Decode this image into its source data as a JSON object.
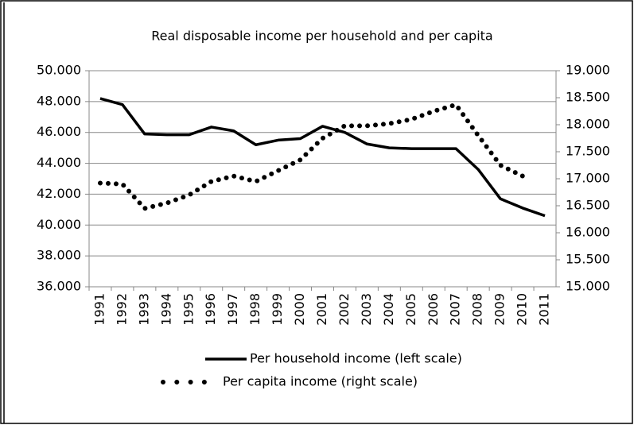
{
  "chart_data": {
    "type": "line",
    "title": "Real disposable income per household and per capita",
    "categories": [
      "1991",
      "1992",
      "1993",
      "1994",
      "1995",
      "1996",
      "1997",
      "1998",
      "1999",
      "2000",
      "2001",
      "2002",
      "2003",
      "2004",
      "2005",
      "2006",
      "2007",
      "2008",
      "2009",
      "2010",
      "2011"
    ],
    "series": [
      {
        "name": "Per household income (left scale)",
        "color": "#000000",
        "style": "solid",
        "values": [
          48200,
          47800,
          45900,
          45850,
          45850,
          46350,
          46100,
          45200,
          45500,
          45600,
          46400,
          46000,
          45250,
          45000,
          44950,
          44950,
          44950,
          43600,
          41700,
          41100,
          40600
        ]
      },
      {
        "name": "Per capita income (right scale)",
        "color": "#000000",
        "style": "dotted",
        "axis": "y2",
        "values": [
          16920,
          16900,
          16450,
          16550,
          16700,
          16950,
          17050,
          16950,
          17150,
          17350,
          17750,
          17980,
          17980,
          18020,
          18100,
          18250,
          18370,
          17800,
          17250,
          17050,
          null
        ]
      }
    ],
    "ylim": [
      36000,
      50000
    ],
    "yticks": [
      {
        "value": 36000,
        "label": "36.000"
      },
      {
        "value": 38000,
        "label": "38.000"
      },
      {
        "value": 40000,
        "label": "40.000"
      },
      {
        "value": 42000,
        "label": "42.000"
      },
      {
        "value": 44000,
        "label": "44.000"
      },
      {
        "value": 46000,
        "label": "46.000"
      },
      {
        "value": 48000,
        "label": "48.000"
      },
      {
        "value": 50000,
        "label": "50.000"
      }
    ],
    "y2lim": [
      15000,
      19000
    ],
    "y2ticks": [
      {
        "value": 15000,
        "label": "15.000"
      },
      {
        "value": 15500,
        "label": "15.500"
      },
      {
        "value": 16000,
        "label": "16.000"
      },
      {
        "value": 16500,
        "label": "16.500"
      },
      {
        "value": 17000,
        "label": "17.000"
      },
      {
        "value": 17500,
        "label": "17.500"
      },
      {
        "value": 18000,
        "label": "18.000"
      },
      {
        "value": 18500,
        "label": "18.500"
      },
      {
        "value": 19000,
        "label": "19.000"
      }
    ],
    "grid": true,
    "legend": "bottom"
  }
}
